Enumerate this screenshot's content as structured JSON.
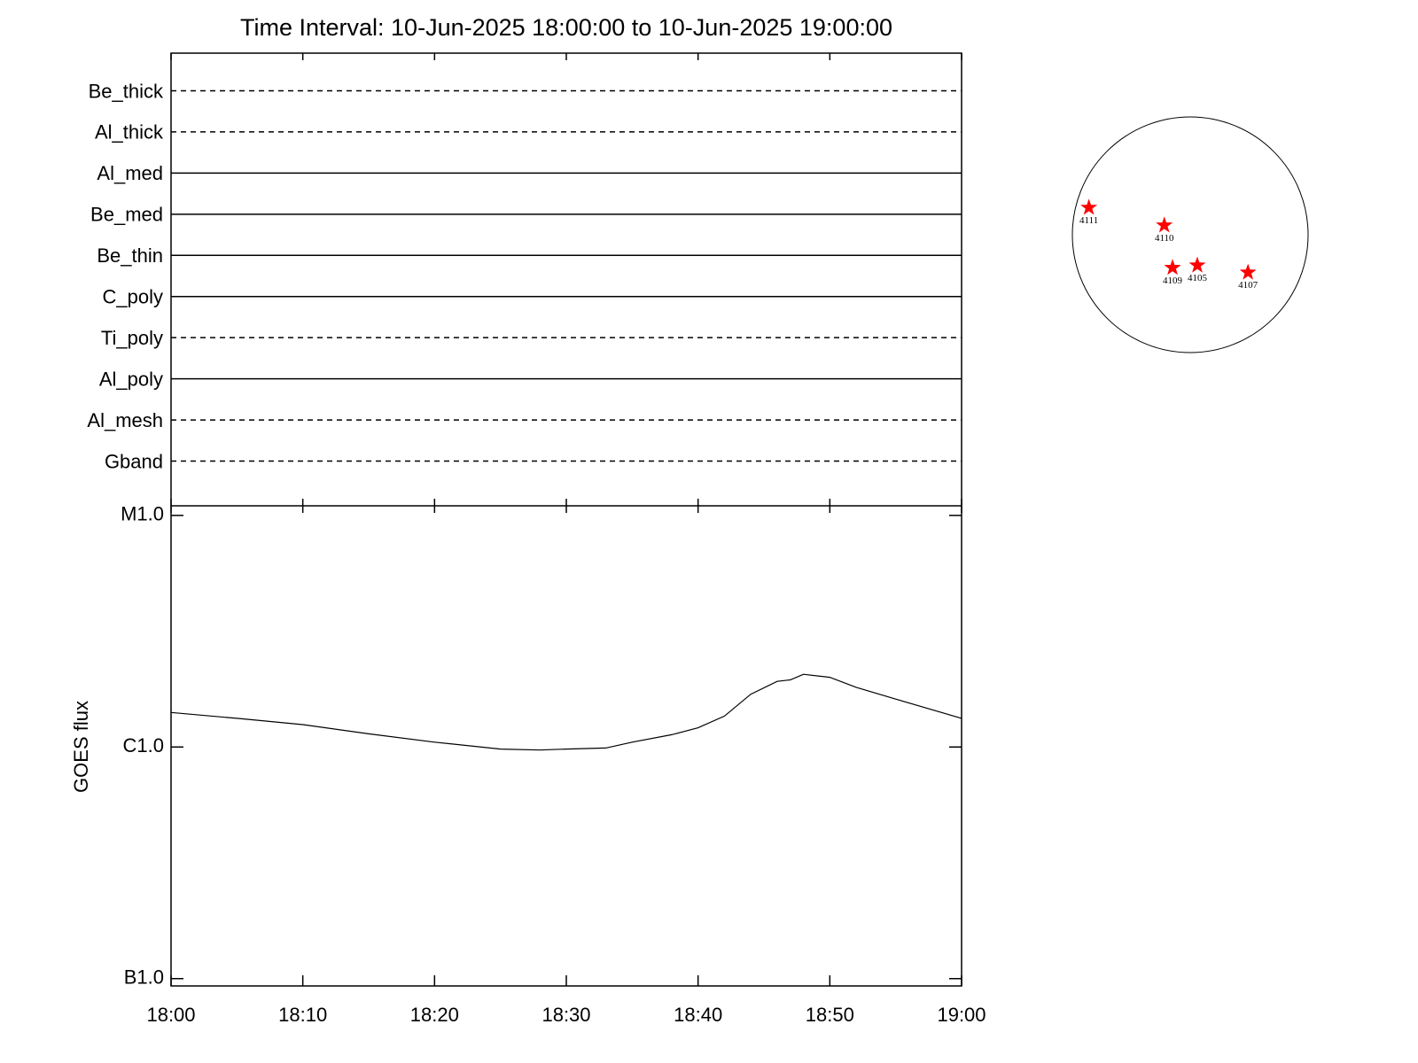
{
  "chart_data": [
    {
      "type": "channels",
      "title": "Time Interval: 10-Jun-2025 18:00:00 to 10-Jun-2025 19:00:00",
      "categories": [
        "Be_thick",
        "Al_thick",
        "Al_med",
        "Be_med",
        "Be_thin",
        "C_poly",
        "Ti_poly",
        "Al_poly",
        "Al_mesh",
        "Gband"
      ],
      "line_styles": [
        "dashed",
        "dashed",
        "solid",
        "solid",
        "solid",
        "solid",
        "dashed",
        "solid",
        "dashed",
        "dashed"
      ],
      "color": "#000000"
    },
    {
      "type": "line",
      "ylabel": "GOES flux",
      "log_scale": true,
      "x": [
        "18:00",
        "18:05",
        "18:10",
        "18:15",
        "18:20",
        "18:25",
        "18:28",
        "18:30",
        "18:33",
        "18:35",
        "18:38",
        "18:40",
        "18:42",
        "18:44",
        "18:46",
        "18:47",
        "18:48",
        "18:50",
        "18:52",
        "18:55",
        "19:00"
      ],
      "values": [
        1.41e-06,
        1.33e-06,
        1.25e-06,
        1.14e-06,
        1.05e-06,
        9.8e-07,
        9.7e-07,
        9.8e-07,
        9.9e-07,
        1.05e-06,
        1.13e-06,
        1.21e-06,
        1.36e-06,
        1.69e-06,
        1.92e-06,
        1.95e-06,
        2.06e-06,
        2e-06,
        1.81e-06,
        1.61e-06,
        1.33e-06
      ],
      "color": "#000000",
      "xlim": [
        "18:00",
        "19:00"
      ],
      "xticks": [
        "18:00",
        "18:10",
        "18:20",
        "18:30",
        "18:40",
        "18:50",
        "19:00"
      ],
      "ylim": [
        9.3e-08,
        1.1e-05
      ],
      "yticks": [
        {
          "value": 1e-07,
          "label": "B1.0"
        },
        {
          "value": 1e-06,
          "label": "C1.0"
        },
        {
          "value": 1e-05,
          "label": "M1.0"
        }
      ]
    },
    {
      "type": "scatter",
      "marker": "star",
      "color": "#ff0000",
      "xlim": [
        -1,
        1
      ],
      "ylim": [
        -1,
        1
      ],
      "labels": [
        "4111",
        "4110",
        "4109",
        "4105",
        "4107"
      ],
      "x": [
        -0.86,
        -0.22,
        -0.15,
        0.06,
        0.49
      ],
      "values": [
        0.23,
        0.08,
        -0.28,
        -0.26,
        -0.32
      ]
    }
  ]
}
